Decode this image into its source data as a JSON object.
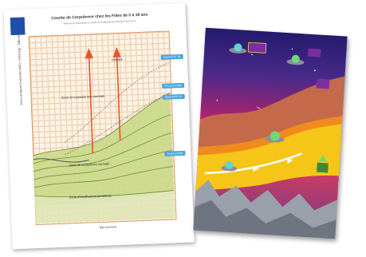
{
  "chart_sheet": {
    "title": "Courbe de Corpulence chez les Filles de 0 à 18 ans",
    "subtitle": "Références françaises et seuils de l'International Obesity Task Force",
    "y_axis_label": "Indice de Masse Corporelle (IMC) = Poids (kg) / Taille (m)²",
    "x_axis_label": "Âge (années)",
    "zone_labels": [
      "Obésité",
      "Zone de surpoids non normale",
      "Zone de corpulence normale",
      "Zone d'insuffisance pondérale"
    ],
    "callouts": [
      "Seuil IOTF 30",
      "97e percentile",
      "Seuil IOTF 25",
      "3e percentile"
    ],
    "colors": {
      "grid": "#f0c9a6",
      "normal_zone": "#c9d98a",
      "lines": "#6b8e23",
      "arrow": "#e8542b",
      "callout": "#4aa3df",
      "logo": "#1f4fa8"
    }
  },
  "poster": {
    "colors": {
      "sky_top": "#241b6e",
      "sky_mid": "#b0246b",
      "yellow_path": "#f5c518",
      "rock": "#c46a4a",
      "mountains": "#9aa0aa"
    },
    "icons": [
      "ufo-icon",
      "ufo-icon",
      "ufo-icon",
      "ufo-icon",
      "ufo-icon",
      "sign-icon",
      "sign-icon",
      "sign-icon",
      "arrow-icon",
      "arrow-icon"
    ]
  }
}
